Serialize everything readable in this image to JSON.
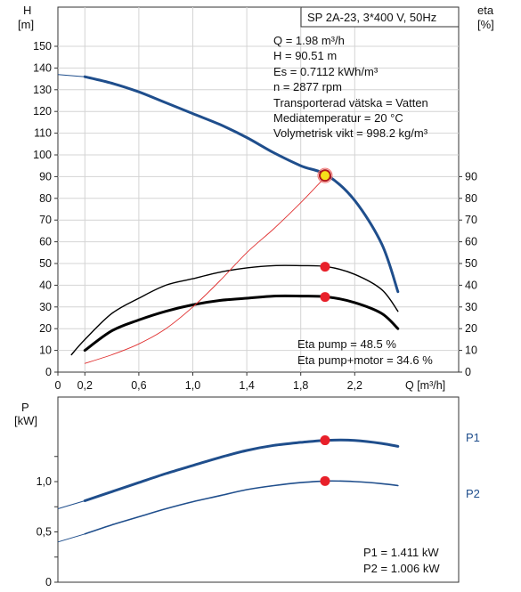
{
  "chart_data": [
    {
      "type": "line",
      "title": "SP 2A-23, 3*400 V, 50Hz",
      "ylabel_left": "H",
      "ylabel_left_unit": "[m]",
      "ylabel_right": "eta",
      "ylabel_right_unit": "[%]",
      "xlabel": "Q [m³/h]",
      "xlim": [
        0,
        2.6
      ],
      "ylim_left": [
        0,
        160
      ],
      "ylim_right": [
        0,
        100
      ],
      "x_ticks": [
        "0",
        "0,2",
        "0,6",
        "1,0",
        "1,4",
        "1,8",
        "2,2",
        "Q [m³/h]"
      ],
      "y_ticks_left": [
        "0",
        "10",
        "20",
        "30",
        "40",
        "50",
        "60",
        "70",
        "80",
        "90",
        "100",
        "110",
        "120",
        "130",
        "140",
        "150"
      ],
      "y_ticks_right": [
        "0",
        "10",
        "20",
        "30",
        "40",
        "50",
        "60",
        "70",
        "80",
        "90"
      ],
      "grid": true,
      "series": [
        {
          "id": "H",
          "axis": "left",
          "x": [
            0.0,
            0.2,
            0.4,
            0.6,
            0.8,
            1.0,
            1.2,
            1.4,
            1.6,
            1.8,
            2.0,
            2.2,
            2.4,
            2.52
          ],
          "y": [
            137,
            136,
            133,
            129,
            124,
            119,
            114,
            108,
            101,
            95,
            90.5,
            79,
            59,
            37
          ],
          "color": "#1f4e8c"
        },
        {
          "id": "eta-pump",
          "axis": "right",
          "x": [
            0.1,
            0.2,
            0.4,
            0.6,
            0.8,
            1.0,
            1.2,
            1.4,
            1.6,
            1.8,
            2.0,
            2.2,
            2.4,
            2.52
          ],
          "y": [
            8,
            15,
            27,
            34,
            40,
            43,
            46,
            48,
            49,
            49,
            48.5,
            45,
            38,
            28
          ],
          "color": "#000000"
        },
        {
          "id": "eta-pump-motor",
          "axis": "right",
          "x": [
            0.2,
            0.4,
            0.6,
            0.8,
            1.0,
            1.2,
            1.4,
            1.6,
            1.8,
            2.0,
            2.2,
            2.4,
            2.52
          ],
          "y": [
            10,
            19,
            24,
            28,
            31,
            33,
            34,
            35,
            35,
            34.6,
            32,
            27,
            20
          ],
          "color": "#000000"
        },
        {
          "id": "system-curve",
          "axis": "left",
          "x": [
            0.2,
            0.4,
            0.6,
            0.8,
            1.0,
            1.2,
            1.4,
            1.6,
            1.8,
            2.0
          ],
          "y": [
            4,
            8,
            13,
            20,
            30,
            42,
            55,
            66,
            78,
            91
          ],
          "color": "#e03030"
        }
      ],
      "duty_point": {
        "x": 1.98,
        "h": 90.51,
        "eta_pump": 48.5,
        "eta_pump_motor": 34.6
      },
      "info_lines": [
        "Q = 1.98 m³/h",
        "H = 90.51 m",
        "Es = 0.7112 kWh/m³",
        "n = 2877 rpm",
        "Transporterad vätska = Vatten",
        "Mediatemperatur = 20 °C",
        "Volymetrisk vikt = 998.2 kg/m³"
      ],
      "eta_lines": [
        "Eta pump = 48.5 %",
        "Eta pump+motor = 34.6 %"
      ]
    },
    {
      "type": "line",
      "ylabel": "P",
      "ylabel_unit": "[kW]",
      "xlim": [
        0,
        2.6
      ],
      "ylim": [
        0,
        1.6
      ],
      "y_ticks": [
        "0",
        "0,5",
        "1,0"
      ],
      "grid": false,
      "series": [
        {
          "name": "P1",
          "x": [
            0.0,
            0.2,
            0.4,
            0.6,
            0.8,
            1.0,
            1.2,
            1.4,
            1.6,
            1.8,
            2.0,
            2.2,
            2.4,
            2.52
          ],
          "y": [
            0.73,
            0.81,
            0.9,
            0.99,
            1.08,
            1.16,
            1.24,
            1.31,
            1.36,
            1.39,
            1.411,
            1.41,
            1.38,
            1.35
          ],
          "color": "#1f4e8c"
        },
        {
          "name": "P2",
          "x": [
            0.0,
            0.2,
            0.4,
            0.6,
            0.8,
            1.0,
            1.2,
            1.4,
            1.6,
            1.8,
            2.0,
            2.2,
            2.4,
            2.52
          ],
          "y": [
            0.4,
            0.48,
            0.57,
            0.65,
            0.73,
            0.8,
            0.86,
            0.92,
            0.96,
            0.99,
            1.006,
            1.0,
            0.98,
            0.96
          ],
          "color": "#1f4e8c"
        }
      ],
      "duty_point": {
        "x": 1.98,
        "p1": 1.411,
        "p2": 1.006
      },
      "power_lines": [
        "P1 = 1.411 kW",
        "P2 = 1.006 kW"
      ]
    }
  ]
}
